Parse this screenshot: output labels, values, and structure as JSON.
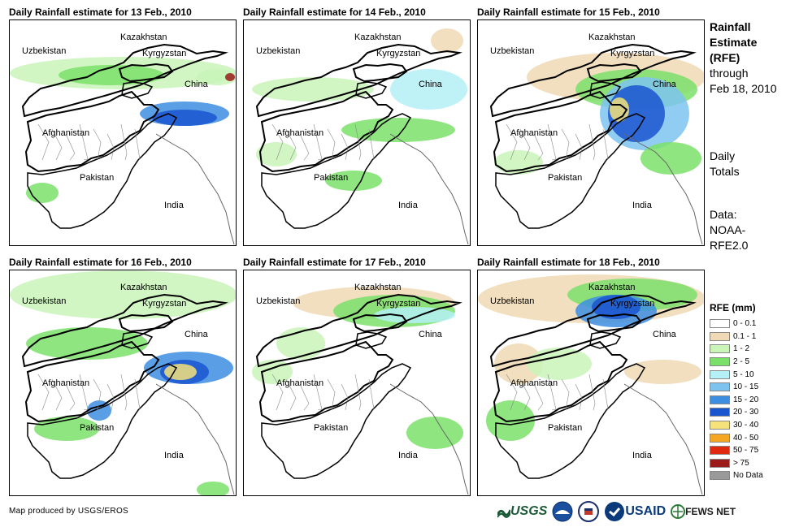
{
  "panels": [
    {
      "title": "Daily Rainfall estimate for 13 Feb., 2010",
      "variant": 0
    },
    {
      "title": "Daily Rainfall estimate for 14 Feb., 2010",
      "variant": 1
    },
    {
      "title": "Daily Rainfall estimate for 15 Feb., 2010",
      "variant": 2
    },
    {
      "title": "Daily Rainfall estimate for 16 Feb., 2010",
      "variant": 3
    },
    {
      "title": "Daily Rainfall estimate for 17 Feb., 2010",
      "variant": 4
    },
    {
      "title": "Daily Rainfall estimate for 18 Feb., 2010",
      "variant": 5
    }
  ],
  "countries": {
    "kazakhstan": "Kazakhstan",
    "uzbekistan": "Uzbekistan",
    "kyrgyzstan": "Kyrgyzstan",
    "china": "China",
    "afghanistan": "Afghanistan",
    "pakistan": "Pakistan",
    "india": "India"
  },
  "side": {
    "title_line1": "Rainfall",
    "title_line2": "Estimate",
    "title_line3": "(RFE)",
    "title_line4": "through",
    "title_line5": "Feb 18, 2010",
    "daily_line1": "Daily",
    "daily_line2": "Totals",
    "data_line1": "Data:",
    "data_line2": "NOAA-",
    "data_line3": "RFE2.0"
  },
  "legend": {
    "title": "RFE (mm)",
    "items": [
      {
        "label": "0 - 0.1",
        "color": "#ffffff"
      },
      {
        "label": "0.1 - 1",
        "color": "#f0d9b5"
      },
      {
        "label": "1 - 2",
        "color": "#c9f5b9"
      },
      {
        "label": "2 - 5",
        "color": "#7be06a"
      },
      {
        "label": "5 - 10",
        "color": "#b4f0f5"
      },
      {
        "label": "10 - 15",
        "color": "#7ec3f0"
      },
      {
        "label": "15 - 20",
        "color": "#3d8ee0"
      },
      {
        "label": "20 - 30",
        "color": "#1a55d0"
      },
      {
        "label": "30 - 40",
        "color": "#f5e27a"
      },
      {
        "label": "40 - 50",
        "color": "#f5a623"
      },
      {
        "label": "50 - 75",
        "color": "#e02a10"
      },
      {
        "label": "> 75",
        "color": "#9b1a1a"
      },
      {
        "label": "No Data",
        "color": "#999999"
      }
    ]
  },
  "credit": "Map produced by USGS/EROS",
  "logos": {
    "usgs": "USGS",
    "usaid": "USAID",
    "fews": "FEWS NET"
  }
}
